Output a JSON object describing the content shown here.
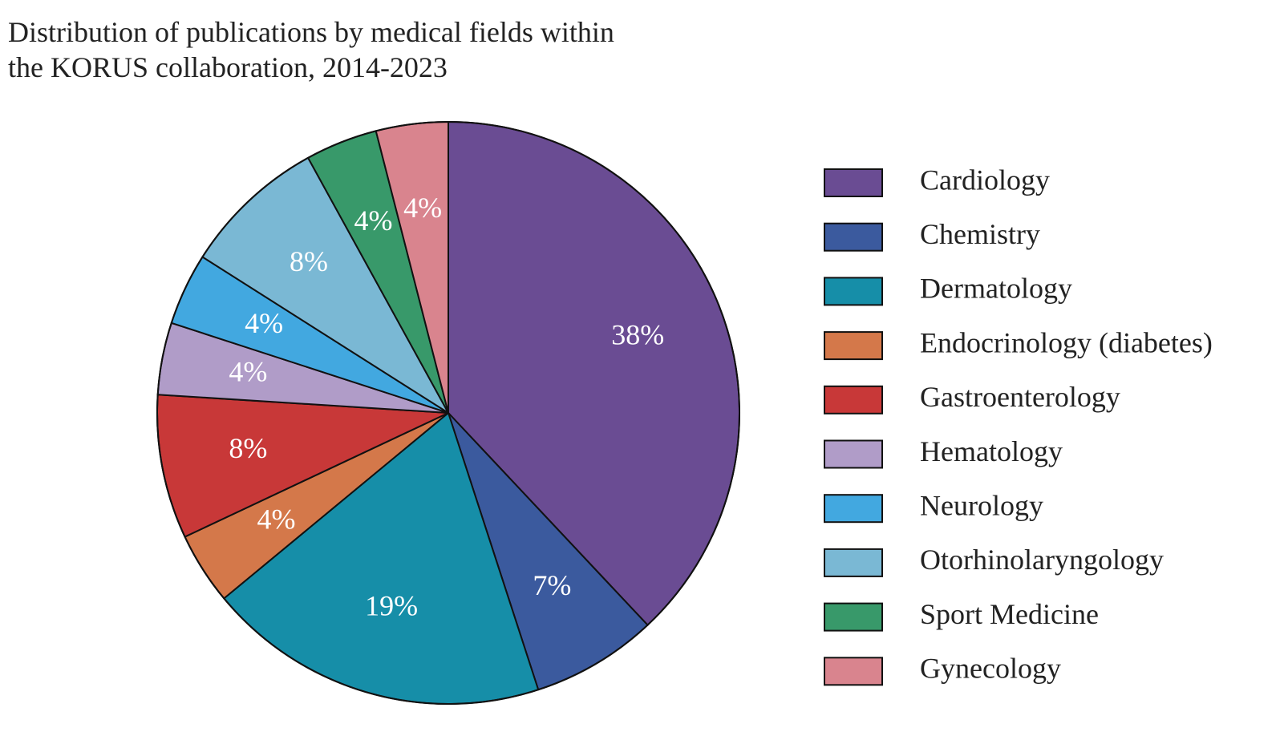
{
  "chart_data": {
    "type": "pie",
    "title": "Distribution of publications by medical fields within the KORUS collaboration, 2014-2023",
    "categories": [
      "Cardiology",
      "Chemistry",
      "Dermatology",
      "Endocrinology (diabetes)",
      "Gastroenterology",
      "Hematology",
      "Neurology",
      "Otorhinolaryngology",
      "Sport Medicine",
      "Gynecology"
    ],
    "values": [
      38,
      7,
      19,
      4,
      8,
      4,
      4,
      8,
      4,
      4
    ],
    "value_labels": [
      "38%",
      "7%",
      "19%",
      "4%",
      "8%",
      "4%",
      "4%",
      "8%",
      "4%",
      "4%"
    ],
    "colors": [
      "#6a4c93",
      "#3b5a9e",
      "#168ea8",
      "#d4784a",
      "#c83838",
      "#b09cc8",
      "#42a8e0",
      "#7ab8d4",
      "#38996a",
      "#d9848e"
    ],
    "legend": "right"
  }
}
